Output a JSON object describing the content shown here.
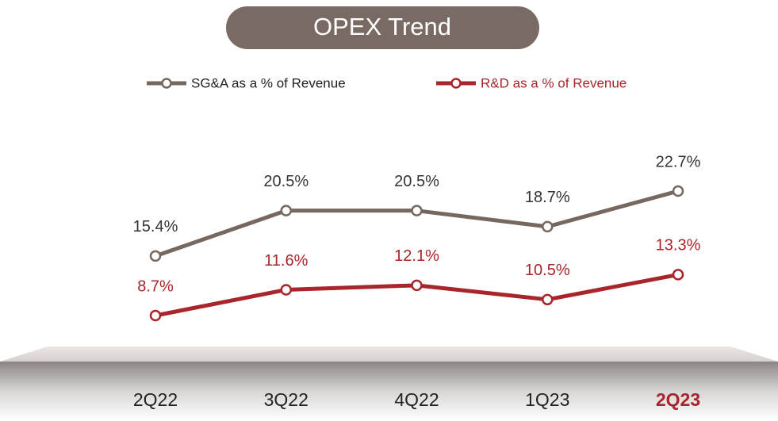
{
  "chart_data": {
    "type": "line",
    "title": "OPEX Trend",
    "categories": [
      "2Q22",
      "3Q22",
      "4Q22",
      "1Q23",
      "2Q23"
    ],
    "series": [
      {
        "name": "SG&A as a % of Revenue",
        "color": "#76675f",
        "label_color": "#333333",
        "values": [
          15.4,
          20.5,
          20.5,
          18.7,
          22.7
        ],
        "value_labels": [
          "15.4%",
          "20.5%",
          "20.5%",
          "18.7%",
          "22.7%"
        ]
      },
      {
        "name": "R&D as a % of Revenue",
        "color": "#a8252b",
        "label_color": "#a8252b",
        "values": [
          8.7,
          11.6,
          12.1,
          10.5,
          13.3
        ],
        "value_labels": [
          "8.7%",
          "11.6%",
          "12.1%",
          "10.5%",
          "13.3%"
        ]
      }
    ]
  }
}
